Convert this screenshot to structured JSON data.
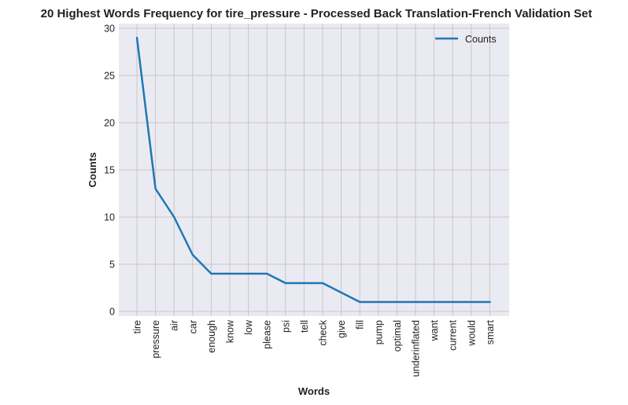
{
  "chart_data": {
    "type": "line",
    "title": "20 Highest Words Frequency for tire_pressure - Processed Back Translation-French Validation Set",
    "xlabel": "Words",
    "ylabel": "Counts",
    "categories": [
      "tire",
      "pressure",
      "air",
      "car",
      "enough",
      "know",
      "low",
      "please",
      "psi",
      "tell",
      "check",
      "give",
      "fill",
      "pump",
      "optimal",
      "underinflated",
      "want",
      "current",
      "would",
      "smart"
    ],
    "series": [
      {
        "name": "Counts",
        "values": [
          29,
          13,
          10,
          6,
          4,
          4,
          4,
          4,
          3,
          3,
          3,
          2,
          1,
          1,
          1,
          1,
          1,
          1,
          1,
          1
        ]
      }
    ],
    "yticks": [
      0,
      5,
      10,
      15,
      20,
      25,
      30
    ],
    "ylim": [
      -0.5,
      30.5
    ],
    "grid": true,
    "legend_position": "top-right",
    "colors": {
      "line": "#1f77b4",
      "background": "#eaeaf2",
      "grid": "#c8c8c8"
    }
  }
}
